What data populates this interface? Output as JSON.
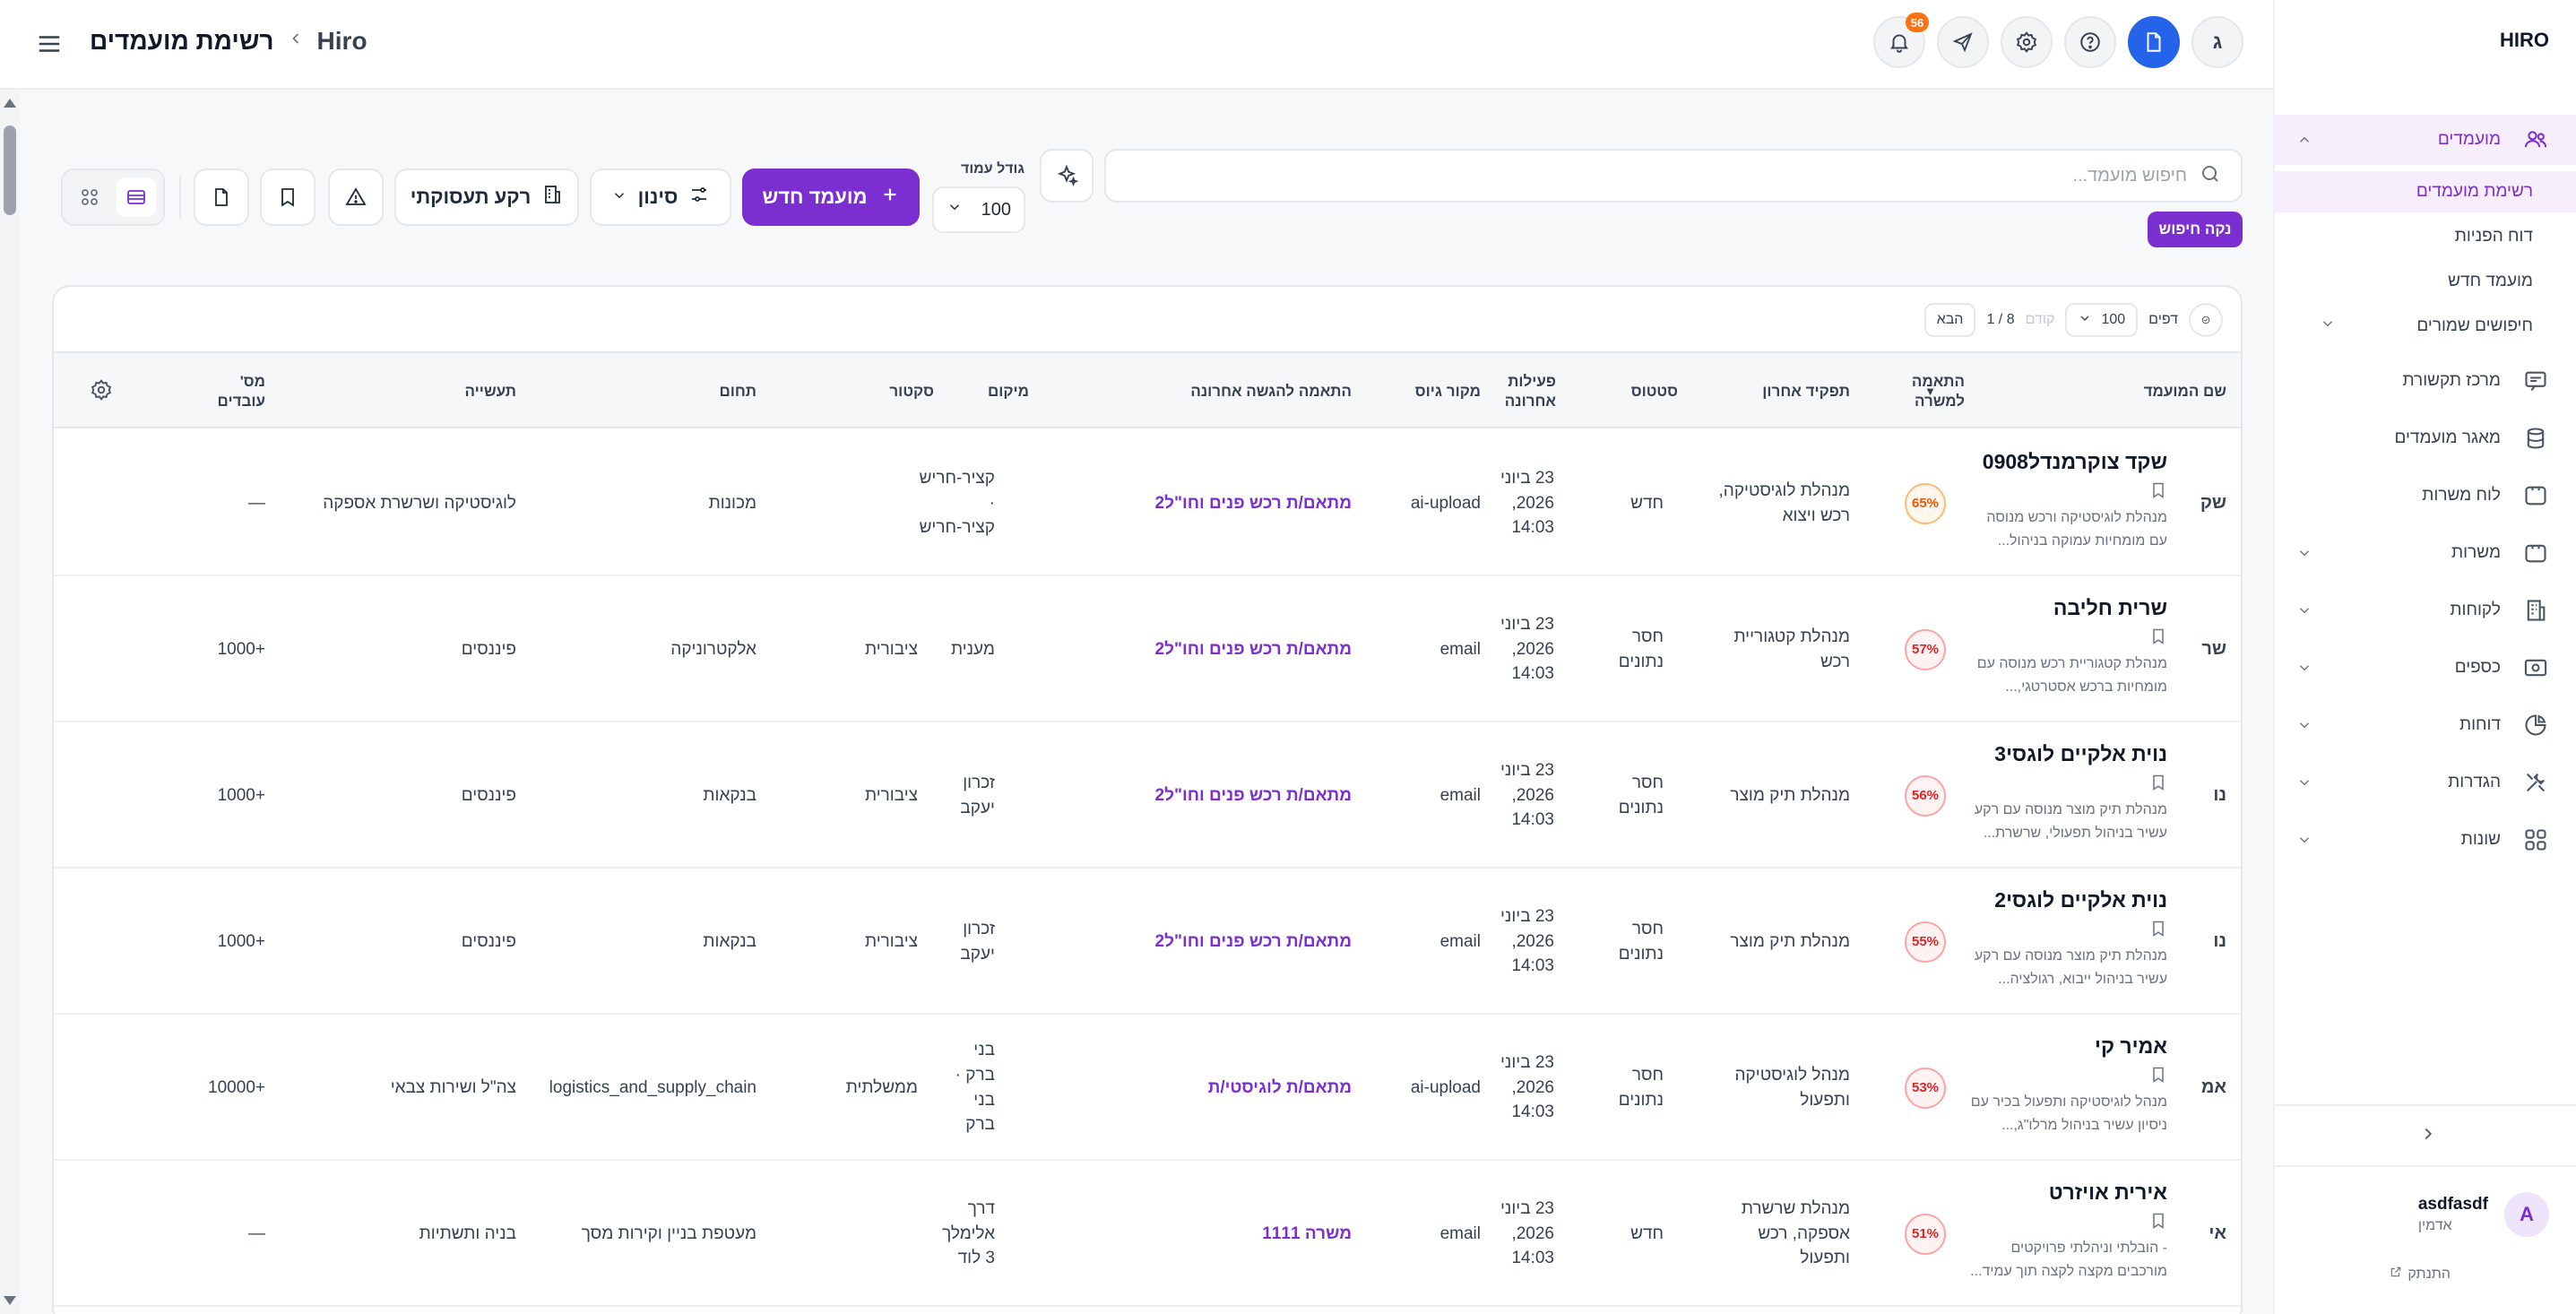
{
  "app": {
    "brand": "HIRO",
    "breadcrumb_root": "Hiro",
    "breadcrumb_current": "רשימת מועמדים"
  },
  "header": {
    "notifications_count": "56",
    "avatar_letter": "ג"
  },
  "sidebar": {
    "items": [
      {
        "label": "מועמדים",
        "icon": "users-icon",
        "expandable": true,
        "active": true
      },
      {
        "label": "מרכז תקשורת",
        "icon": "chat-icon"
      },
      {
        "label": "מאגר מועמדים",
        "icon": "database-icon"
      },
      {
        "label": "לוח משרות",
        "icon": "board-icon"
      },
      {
        "label": "משרות",
        "icon": "briefcase-icon",
        "expandable": true
      },
      {
        "label": "לקוחות",
        "icon": "building-icon",
        "expandable": true
      },
      {
        "label": "כספים",
        "icon": "money-icon",
        "expandable": true
      },
      {
        "label": "דוחות",
        "icon": "pie-chart-icon",
        "expandable": true
      },
      {
        "label": "הגדרות",
        "icon": "tools-icon",
        "expandable": true
      },
      {
        "label": "שונות",
        "icon": "grid-icon",
        "expandable": true
      }
    ],
    "sub_items": [
      {
        "label": "רשימת מועמדים",
        "active": true
      },
      {
        "label": "דוח הפניות"
      },
      {
        "label": "מועמד חדש"
      },
      {
        "label": "חיפושים שמורים",
        "expandable": true
      }
    ],
    "user": {
      "avatar": "A",
      "name": "asdfasdf",
      "role": "אדמין",
      "logout": "התנתק"
    }
  },
  "toolbar": {
    "search_placeholder": "חיפוש מועמד...",
    "clear_search": "נקה חיפוש",
    "page_size_label": "גודל עמוד",
    "page_size": "100",
    "new_candidate": "מועמד חדש",
    "filter": "סינון",
    "industry": "רקע תעסוקתי"
  },
  "pager": {
    "pages_label": "דפים",
    "per_page": "100",
    "prev": "קודם",
    "page_info": "8 / 1",
    "next": "הבא"
  },
  "table": {
    "columns": {
      "name": "שם המועמד",
      "match": "התאמה למשרה",
      "last_role": "תפקיד אחרון",
      "status": "סטטוס",
      "last_activity": "פעילות אחרונה",
      "source": "מקור גיוס",
      "last_submission": "התאמה להגשה אחרונה",
      "location": "מיקום",
      "sector": "סקטור",
      "field": "תחום",
      "industry": "תעשייה",
      "employees": "מס' עובדים"
    },
    "rows": [
      {
        "initials": "שק",
        "name": "שקד צוקרמנדל0908",
        "desc": "מנהלת לוגיסטיקה ורכש מנוסה עם מומחיות עמוקה בניהול...",
        "match": "65%",
        "match_tone": "orange",
        "last_role": "מנהלת לוגיסטיקה, רכש ויצוא",
        "status": "חדש",
        "activity": "23 ביוני 2026, 14:03",
        "source": "ai-upload",
        "submission": "מתאם/ת רכש פנים וחו\"ל2",
        "location": "קציר-חריש · קציר-חריש",
        "sector": "",
        "field": "מכונות",
        "industry": "לוגיסטיקה ושרשרת אספקה",
        "employees": "—"
      },
      {
        "initials": "שר",
        "name": "שרית חליבה",
        "desc": "מנהלת קטגוריית רכש מנוסה עם מומחיות ברכש אסטרטגי,...",
        "match": "57%",
        "match_tone": "red",
        "last_role": "מנהלת קטגוריית רכש",
        "status": "חסר נתונים",
        "activity": "23 ביוני 2026, 14:03",
        "source": "email",
        "submission": "מתאם/ת רכש פנים וחו\"ל2",
        "location": "מענית",
        "sector": "ציבורית",
        "field": "אלקטרוניקה",
        "industry": "פיננסים",
        "employees": "+1000"
      },
      {
        "initials": "נו",
        "name": "נוית אלקיים לוגסי3",
        "desc": "מנהלת תיק מוצר מנוסה עם רקע עשיר בניהול תפעולי, שרשרת...",
        "match": "56%",
        "match_tone": "red",
        "last_role": "מנהלת תיק מוצר",
        "status": "חסר נתונים",
        "activity": "23 ביוני 2026, 14:03",
        "source": "email",
        "submission": "מתאם/ת רכש פנים וחו\"ל2",
        "location": "זכרון יעקב",
        "sector": "ציבורית",
        "field": "בנקאות",
        "industry": "פיננסים",
        "employees": "+1000"
      },
      {
        "initials": "נו",
        "name": "נוית אלקיים לוגסי2",
        "desc": "מנהלת תיק מוצר מנוסה עם רקע עשיר בניהול ייבוא, רגולציה...",
        "match": "55%",
        "match_tone": "red",
        "last_role": "מנהלת תיק מוצר",
        "status": "חסר נתונים",
        "activity": "23 ביוני 2026, 14:03",
        "source": "email",
        "submission": "מתאם/ת רכש פנים וחו\"ל2",
        "location": "זכרון יעקב",
        "sector": "ציבורית",
        "field": "בנקאות",
        "industry": "פיננסים",
        "employees": "+1000"
      },
      {
        "initials": "אמ",
        "name": "אמיר קי",
        "desc": "מנהל לוגיסטיקה ותפעול בכיר עם ניסיון עשיר בניהול מרלו\"ג,...",
        "match": "53%",
        "match_tone": "red",
        "last_role": "מנהל לוגיסטיקה ותפעול",
        "status": "חסר נתונים",
        "activity": "23 ביוני 2026, 14:03",
        "source": "ai-upload",
        "submission": "מתאם/ת לוגיסטי/ת",
        "location": "בני ברק · בני ברק",
        "sector": "ממשלתית",
        "field": "logistics_and_supply_chain",
        "industry": "צה\"ל ושירות צבאי",
        "employees": "+10000"
      },
      {
        "initials": "אי",
        "name": "אירית אויזרט",
        "desc": "- הובלתי וניהלתי פרויקטים מורכבים מקצה לקצה תוך עמיד...",
        "match": "51%",
        "match_tone": "red",
        "last_role": "מנהלת שרשרת אספקה, רכש ותפעול",
        "status": "חדש",
        "activity": "23 ביוני 2026, 14:03",
        "source": "email",
        "submission": "משרה 1111",
        "location": "דרך אלימלך 3 לוד",
        "sector": "",
        "field": "מעטפת בניין וקירות מסך",
        "industry": "בניה ותשתיות",
        "employees": "—"
      }
    ]
  }
}
